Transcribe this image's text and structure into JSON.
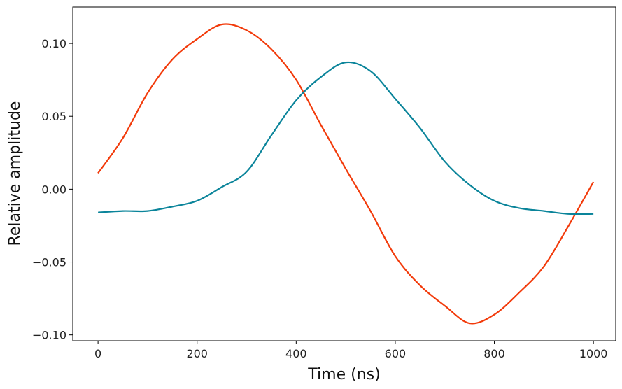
{
  "chart_data": {
    "type": "line",
    "title": "",
    "xlabel": "Time (ns)",
    "ylabel": "Relative amplitude",
    "xlim": [
      -51,
      1045
    ],
    "ylim": [
      -0.104,
      0.125
    ],
    "grid": false,
    "xticks": [
      0,
      200,
      400,
      600,
      800,
      1000
    ],
    "xtick_labels": [
      "0",
      "200",
      "400",
      "600",
      "800",
      "1000"
    ],
    "yticks": [
      0.1,
      0.05,
      0.0,
      -0.05,
      -0.1
    ],
    "ytick_labels": [
      "0.10",
      "0.05",
      "0.00",
      "−0.05",
      "−0.10"
    ],
    "x": [
      0,
      50,
      100,
      150,
      200,
      250,
      300,
      350,
      400,
      450,
      500,
      550,
      600,
      650,
      700,
      750,
      800,
      850,
      900,
      950,
      1000
    ],
    "series": [
      {
        "color": "#f23a0a",
        "values": [
          0.011,
          0.035,
          0.066,
          0.089,
          0.103,
          0.113,
          0.109,
          0.096,
          0.075,
          0.044,
          0.014,
          -0.015,
          -0.046,
          -0.066,
          -0.08,
          -0.092,
          -0.086,
          -0.071,
          -0.053,
          -0.025,
          0.005
        ]
      },
      {
        "color": "#0a849a",
        "values": [
          -0.016,
          -0.015,
          -0.015,
          -0.012,
          -0.008,
          0.0015,
          0.012,
          0.037,
          0.061,
          0.077,
          0.087,
          0.081,
          0.062,
          0.042,
          0.019,
          0.003,
          -0.008,
          -0.013,
          -0.015,
          -0.017,
          -0.017
        ]
      }
    ]
  }
}
